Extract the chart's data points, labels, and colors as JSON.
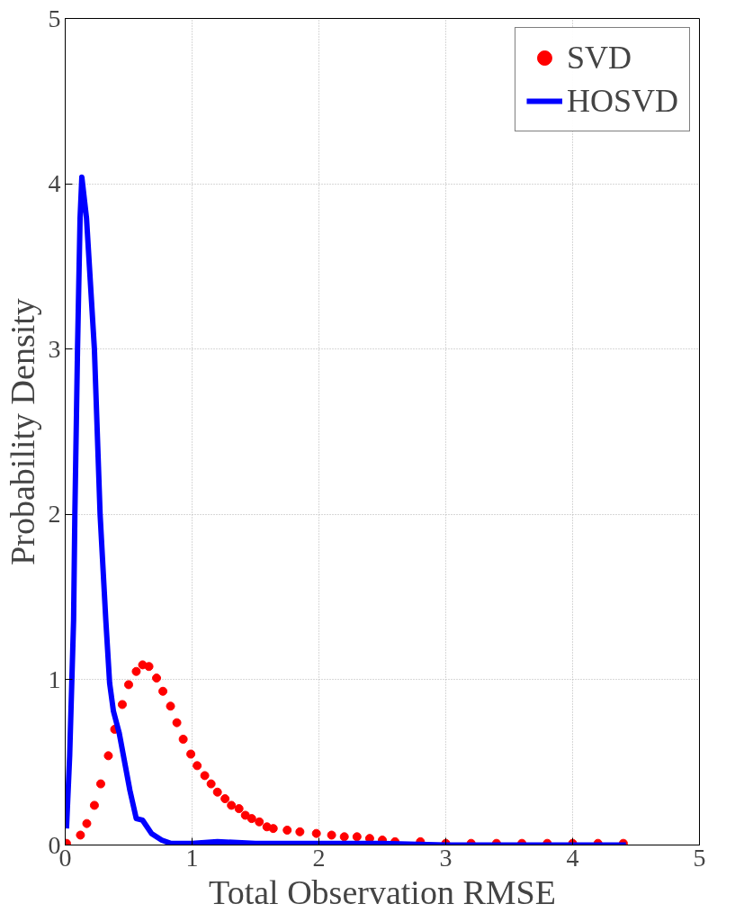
{
  "chart_data": {
    "type": "line",
    "xlabel": "Total Observation RMSE",
    "ylabel": "Probability Density",
    "xlim": [
      0,
      5
    ],
    "ylim": [
      0,
      5
    ],
    "xticks": [
      0,
      1,
      2,
      3,
      4,
      5
    ],
    "yticks": [
      0,
      1,
      2,
      3,
      4,
      5
    ],
    "grid": true,
    "legend": "top right",
    "series": [
      {
        "name": "SVD",
        "type": "scatter",
        "marker": "circle",
        "color": "#ff0000",
        "x": [
          0.01,
          0.12,
          0.17,
          0.23,
          0.28,
          0.34,
          0.39,
          0.45,
          0.5,
          0.56,
          0.61,
          0.66,
          0.72,
          0.77,
          0.83,
          0.88,
          0.93,
          0.99,
          1.04,
          1.1,
          1.15,
          1.2,
          1.26,
          1.31,
          1.37,
          1.42,
          1.47,
          1.53,
          1.59,
          1.64,
          1.75,
          1.85,
          1.98,
          2.1,
          2.2,
          2.3,
          2.4,
          2.5,
          2.6,
          2.8,
          3.0,
          3.2,
          3.4,
          3.6,
          3.8,
          4.0,
          4.2,
          4.4
        ],
        "values": [
          0.01,
          0.06,
          0.13,
          0.24,
          0.37,
          0.54,
          0.7,
          0.85,
          0.97,
          1.05,
          1.09,
          1.08,
          1.01,
          0.93,
          0.84,
          0.74,
          0.64,
          0.55,
          0.48,
          0.42,
          0.37,
          0.32,
          0.28,
          0.24,
          0.22,
          0.18,
          0.16,
          0.14,
          0.11,
          0.1,
          0.09,
          0.08,
          0.07,
          0.06,
          0.05,
          0.05,
          0.04,
          0.03,
          0.02,
          0.02,
          0.01,
          0.01,
          0.01,
          0.01,
          0.01,
          0.01,
          0.01,
          0.01
        ]
      },
      {
        "name": "HOSVD",
        "type": "line",
        "line_style": "solid",
        "color": "#0000ff",
        "x": [
          0.01,
          0.035,
          0.066,
          0.076,
          0.097,
          0.117,
          0.131,
          0.168,
          0.23,
          0.275,
          0.32,
          0.35,
          0.38,
          0.425,
          0.51,
          0.56,
          0.61,
          0.68,
          0.76,
          0.83,
          1.0,
          1.2,
          1.5,
          2.0,
          2.5,
          3.0,
          4.0,
          4.42
        ],
        "values": [
          0.1,
          0.54,
          1.36,
          2.0,
          3.0,
          3.79,
          4.04,
          3.79,
          3.0,
          2.0,
          1.36,
          0.98,
          0.81,
          0.68,
          0.33,
          0.16,
          0.15,
          0.07,
          0.03,
          0.01,
          0.01,
          0.02,
          0.01,
          0.01,
          0.01,
          0,
          0,
          0
        ]
      }
    ]
  }
}
